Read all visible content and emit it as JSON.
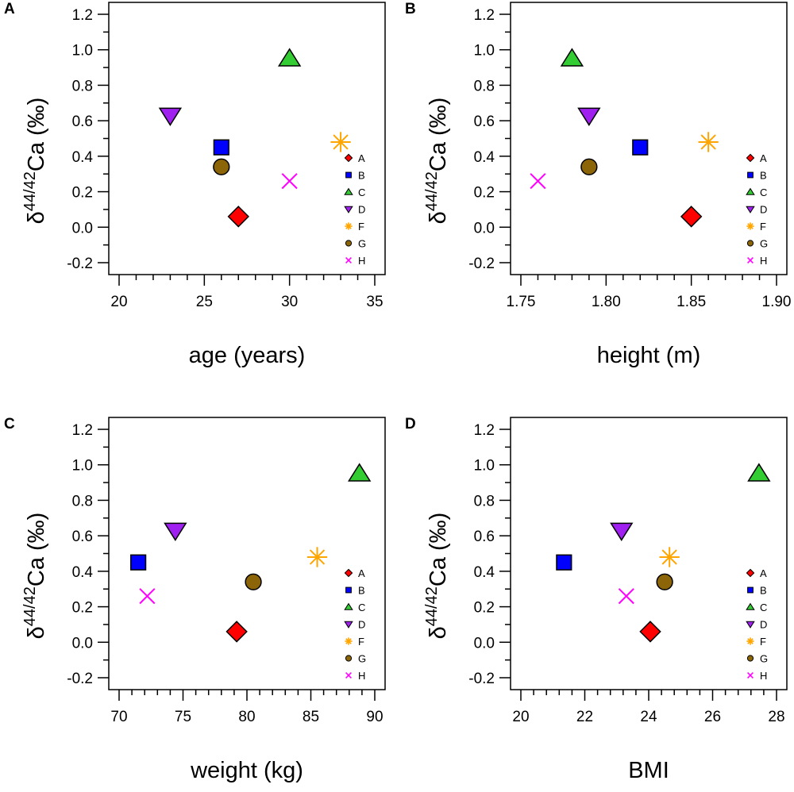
{
  "legend": {
    "items": [
      {
        "label": "A",
        "marker": "diamond",
        "color": "#FF0000"
      },
      {
        "label": "B",
        "marker": "square",
        "color": "#0000FF"
      },
      {
        "label": "C",
        "marker": "triangle-up",
        "color": "#33CC33"
      },
      {
        "label": "D",
        "marker": "triangle-down",
        "color": "#A020F0"
      },
      {
        "label": "F",
        "marker": "asterisk",
        "color": "#FFA500"
      },
      {
        "label": "G",
        "marker": "circle",
        "color": "#8B6508"
      },
      {
        "label": "H",
        "marker": "cross",
        "color": "#FF00FF"
      }
    ]
  },
  "y_axis": {
    "label_prefix": "δ",
    "label_super": "44/42",
    "label_main": "Ca",
    "label_unit": "(‰)",
    "ylim": [
      -0.2,
      1.2
    ],
    "ticks": [
      -0.2,
      0.0,
      0.2,
      0.4,
      0.6,
      0.8,
      1.0,
      1.2
    ],
    "tick_labels": [
      "-0.2",
      "0.0",
      "0.2",
      "0.4",
      "0.6",
      "0.8",
      "1.0",
      "1.2"
    ]
  },
  "chart_data": [
    {
      "panel": "A",
      "type": "scatter",
      "xlabel": "age (years)",
      "xlim": [
        20,
        35
      ],
      "xticks": [
        20,
        25,
        30,
        35
      ],
      "xtick_labels": [
        "20",
        "25",
        "30",
        "35"
      ],
      "points": [
        {
          "label": "A",
          "x": 27,
          "y": 0.06
        },
        {
          "label": "B",
          "x": 26,
          "y": 0.45
        },
        {
          "label": "C",
          "x": 30,
          "y": 0.95
        },
        {
          "label": "D",
          "x": 23,
          "y": 0.63
        },
        {
          "label": "F",
          "x": 33,
          "y": 0.48
        },
        {
          "label": "G",
          "x": 26,
          "y": 0.34
        },
        {
          "label": "H",
          "x": 30,
          "y": 0.26
        }
      ]
    },
    {
      "panel": "B",
      "type": "scatter",
      "xlabel": "height (m)",
      "xlim": [
        1.75,
        1.9
      ],
      "xticks": [
        1.75,
        1.8,
        1.85,
        1.9
      ],
      "xtick_labels": [
        "1.75",
        "1.80",
        "1.85",
        "1.90"
      ],
      "points": [
        {
          "label": "A",
          "x": 1.85,
          "y": 0.06
        },
        {
          "label": "B",
          "x": 1.82,
          "y": 0.45
        },
        {
          "label": "C",
          "x": 1.78,
          "y": 0.95
        },
        {
          "label": "D",
          "x": 1.79,
          "y": 0.63
        },
        {
          "label": "F",
          "x": 1.86,
          "y": 0.48
        },
        {
          "label": "G",
          "x": 1.79,
          "y": 0.34
        },
        {
          "label": "H",
          "x": 1.76,
          "y": 0.26
        }
      ]
    },
    {
      "panel": "C",
      "type": "scatter",
      "xlabel": "weight (kg)",
      "xlim": [
        70,
        90
      ],
      "xticks": [
        70,
        75,
        80,
        85,
        90
      ],
      "xtick_labels": [
        "70",
        "75",
        "80",
        "85",
        "90"
      ],
      "points": [
        {
          "label": "A",
          "x": 79.2,
          "y": 0.06
        },
        {
          "label": "B",
          "x": 71.5,
          "y": 0.45
        },
        {
          "label": "C",
          "x": 88.8,
          "y": 0.95
        },
        {
          "label": "D",
          "x": 74.4,
          "y": 0.63
        },
        {
          "label": "F",
          "x": 85.5,
          "y": 0.48
        },
        {
          "label": "G",
          "x": 80.5,
          "y": 0.34
        },
        {
          "label": "H",
          "x": 72.2,
          "y": 0.26
        }
      ]
    },
    {
      "panel": "D",
      "type": "scatter",
      "xlabel": "BMI",
      "xlim": [
        20,
        28
      ],
      "xticks": [
        20,
        22,
        24,
        26,
        28
      ],
      "xtick_labels": [
        "20",
        "22",
        "24",
        "26",
        "28"
      ],
      "points": [
        {
          "label": "A",
          "x": 24.05,
          "y": 0.06
        },
        {
          "label": "B",
          "x": 21.35,
          "y": 0.45
        },
        {
          "label": "C",
          "x": 27.45,
          "y": 0.95
        },
        {
          "label": "D",
          "x": 23.15,
          "y": 0.63
        },
        {
          "label": "F",
          "x": 24.65,
          "y": 0.48
        },
        {
          "label": "G",
          "x": 24.5,
          "y": 0.34
        },
        {
          "label": "H",
          "x": 23.3,
          "y": 0.26
        }
      ]
    }
  ]
}
